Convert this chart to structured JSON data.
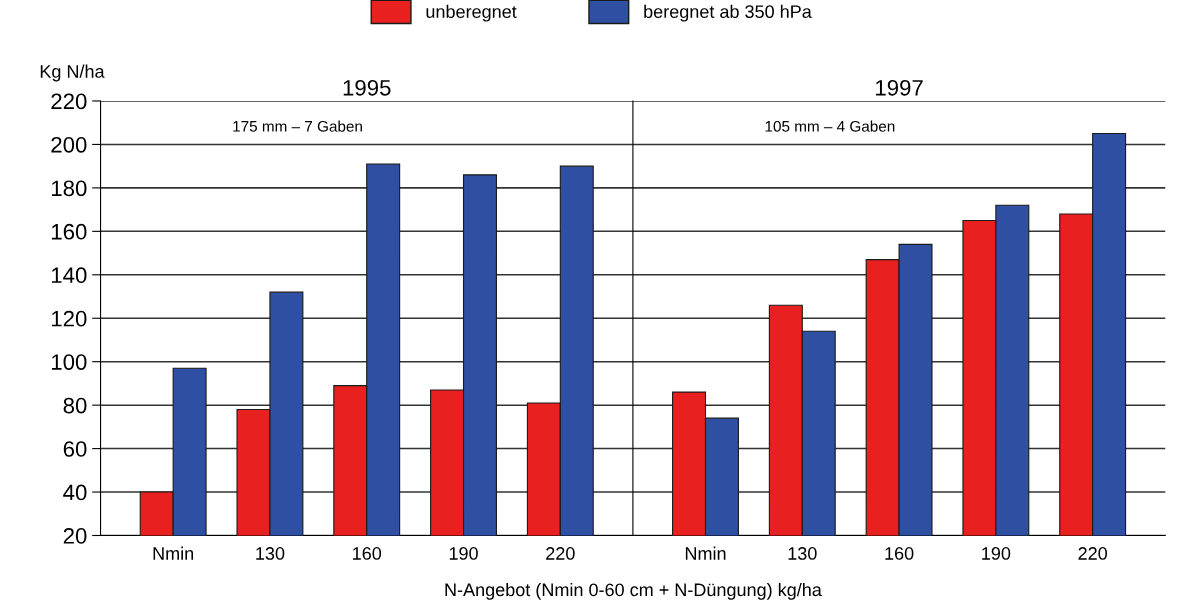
{
  "chart_data": [
    {
      "type": "bar",
      "title": "1995",
      "ylabel": "Kg N/ha",
      "xlabel": "N-Angebot (Nmin 0-60 cm + N-Düngung) kg/ha",
      "annotations": [
        "175 mm – 7 Gaben"
      ],
      "categories": [
        "Nmin",
        "130",
        "160",
        "190",
        "220"
      ],
      "series": [
        {
          "name": "unberegnet",
          "color": "#e82020",
          "values": [
            40,
            78,
            89,
            87,
            81
          ]
        },
        {
          "name": "beregnet ab 350 hPa",
          "color": "#2f4fa3",
          "values": [
            97,
            132,
            191,
            186,
            190
          ]
        }
      ],
      "ylim": [
        20,
        220
      ],
      "yticks": [
        20,
        40,
        60,
        80,
        100,
        120,
        140,
        160,
        180,
        200,
        220
      ],
      "grid": "y",
      "legend": "top"
    },
    {
      "type": "bar",
      "title": "1997",
      "annotations": [
        "105 mm – 4 Gaben"
      ],
      "categories": [
        "Nmin",
        "130",
        "160",
        "190",
        "220"
      ],
      "series": [
        {
          "name": "unberegnet",
          "color": "#e82020",
          "values": [
            86,
            126,
            147,
            165,
            168
          ]
        },
        {
          "name": "beregnet ab 350 hPa",
          "color": "#2f4fa3",
          "values": [
            74,
            114,
            154,
            172,
            205
          ]
        }
      ],
      "ylim": [
        20,
        220
      ],
      "yticks": [
        20,
        40,
        60,
        80,
        100,
        120,
        140,
        160,
        180,
        200,
        220
      ],
      "grid": "y",
      "legend": "top",
      "tick_labels": "x"
    }
  ]
}
